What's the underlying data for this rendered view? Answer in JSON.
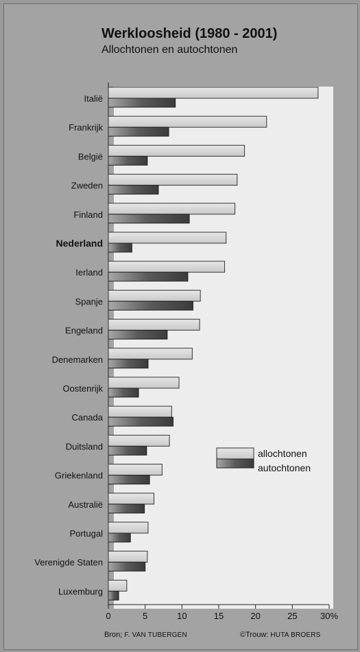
{
  "title": "Werkloosheid (1980 - 2001)",
  "subtitle": "Allochtonen en autochtonen",
  "source_left_prefix": "Bron; ",
  "source_left_name": "F. VAN TUBERGEN",
  "source_right_prefix": "©Trouw: ",
  "source_right_name": "HUTA BROERS",
  "chart_data": {
    "type": "bar",
    "orientation": "horizontal",
    "categories": [
      "Italië",
      "Frankrijk",
      "België",
      "Zweden",
      "Finland",
      "Nederland",
      "Ierland",
      "Spanje",
      "Engeland",
      "Denemarken",
      "Oostenrijk",
      "Canada",
      "Duitsland",
      "Griekenland",
      "Australië",
      "Portugal",
      "Verenigde Staten",
      "Luxemburg"
    ],
    "highlighted_category": "Nederland",
    "series": [
      {
        "name": "allochtonen",
        "values": [
          28.5,
          21.5,
          18.5,
          17.5,
          17.2,
          16.0,
          15.8,
          12.5,
          12.4,
          11.4,
          9.6,
          8.6,
          8.3,
          7.3,
          6.2,
          5.4,
          5.3,
          2.5
        ],
        "color": "#c9c9c9"
      },
      {
        "name": "autochtonen",
        "values": [
          9.1,
          8.2,
          5.3,
          6.8,
          11.0,
          3.2,
          10.8,
          11.5,
          8.0,
          5.4,
          4.1,
          8.8,
          5.2,
          5.6,
          4.9,
          3.0,
          5.0,
          1.4
        ],
        "color": "#5a5a5a"
      }
    ],
    "xlim": [
      0,
      30
    ],
    "xticks": [
      0,
      5,
      10,
      15,
      20,
      25,
      30
    ],
    "xtick_labels": [
      "0",
      "5",
      "10",
      "15",
      "20",
      "25",
      "30%"
    ],
    "grid": false,
    "legend_placement": "lower-right"
  }
}
